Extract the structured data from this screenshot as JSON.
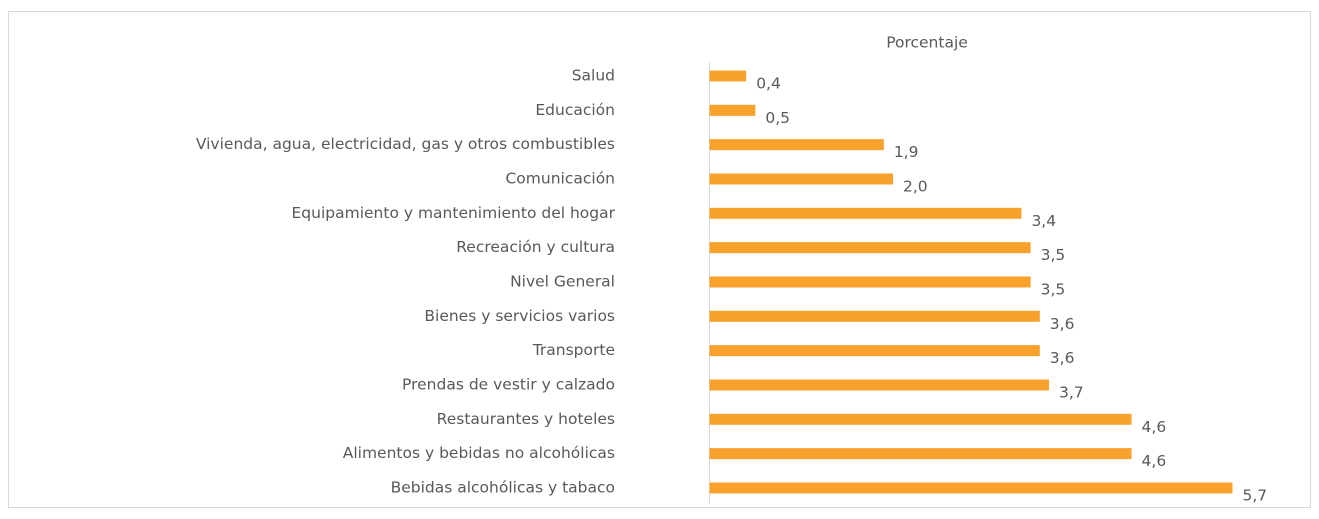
{
  "chart_data": {
    "type": "bar",
    "orientation": "horizontal",
    "title": "Porcentaje",
    "categories": [
      "Salud",
      "Educación",
      "Vivienda, agua, electricidad, gas y otros combustibles",
      "Comunicación",
      "Equipamiento y mantenimiento del hogar",
      "Recreación y cultura",
      "Nivel General",
      "Bienes y servicios varios",
      "Transporte",
      "Prendas de vestir y calzado",
      "Restaurantes y hoteles",
      "Alimentos y bebidas no alcohólicas",
      "Bebidas alcohólicas y tabaco"
    ],
    "values": [
      0.4,
      0.5,
      1.9,
      2.0,
      3.4,
      3.5,
      3.5,
      3.6,
      3.6,
      3.7,
      4.6,
      4.6,
      5.7
    ],
    "value_labels": [
      "0,4",
      "0,5",
      "1,9",
      "2,0",
      "3,4",
      "3,5",
      "3,5",
      "3,6",
      "3,6",
      "3,7",
      "4,6",
      "4,6",
      "5,7"
    ],
    "color": "#f8a12c",
    "xlim": [
      0,
      6
    ]
  }
}
